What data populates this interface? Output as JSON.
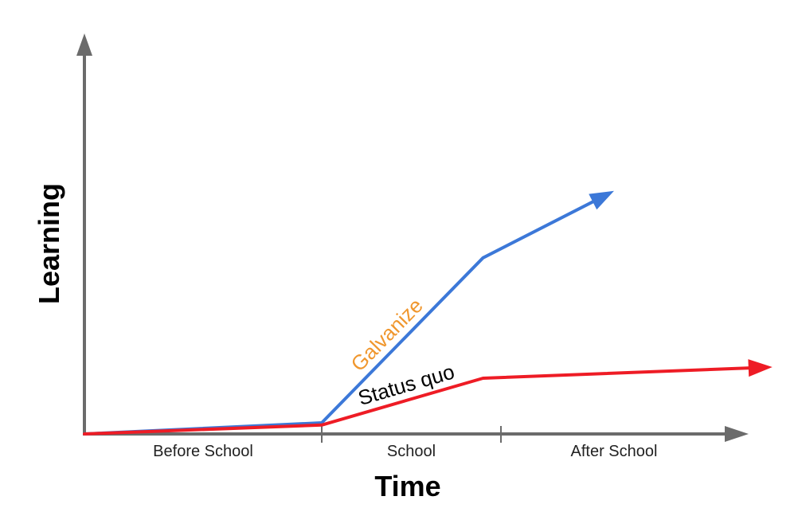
{
  "chart_data": {
    "type": "line",
    "xlabel": "Time",
    "ylabel": "Learning",
    "categories": [
      "Before School",
      "School",
      "After School"
    ],
    "xlim": [
      0,
      3
    ],
    "ylim": [
      0,
      10
    ],
    "series": [
      {
        "name": "Galvanize",
        "color": "#3c78d8",
        "label_color": "#f0972e",
        "x": [
          0,
          1,
          1.9,
          2.5
        ],
        "y": [
          0,
          0.5,
          7.9,
          10.9
        ]
      },
      {
        "name": "Status quo",
        "color": "#ee1c25",
        "label_color": "#000000",
        "x": [
          0,
          1,
          1.9,
          3.2
        ],
        "y": [
          0,
          0.4,
          2.5,
          3.0
        ]
      }
    ]
  }
}
